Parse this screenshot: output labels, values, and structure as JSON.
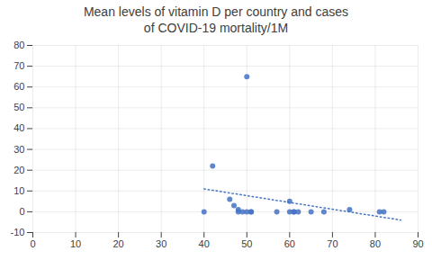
{
  "chart_data": {
    "type": "scatter",
    "title": "Mean levels of vitamin D per country and cases\nof COVID-19 mortality/1M",
    "series": [
      {
        "type": "scatter",
        "color": "#4472C4",
        "x": [
          40,
          42,
          46,
          47,
          48,
          48,
          49,
          50,
          50,
          51,
          51,
          57,
          60,
          60,
          61,
          61,
          62,
          65,
          68,
          74,
          81,
          82
        ],
        "values": [
          0,
          22,
          6,
          3,
          1,
          0,
          0,
          65,
          0,
          0,
          0,
          0,
          5,
          0,
          0,
          0,
          0,
          0,
          0,
          1,
          0,
          0
        ]
      },
      {
        "type": "line",
        "line_style": "dotted",
        "color": "#4472C4",
        "x": [
          40,
          86
        ],
        "values": [
          11,
          -4
        ]
      }
    ],
    "xlim": [
      0,
      90
    ],
    "ylim": [
      -10,
      80
    ],
    "xticks": [
      0,
      10,
      20,
      30,
      40,
      50,
      60,
      70,
      80,
      90
    ],
    "yticks": [
      -10,
      0,
      10,
      20,
      30,
      40,
      50,
      60,
      70,
      80
    ],
    "grid": true
  }
}
